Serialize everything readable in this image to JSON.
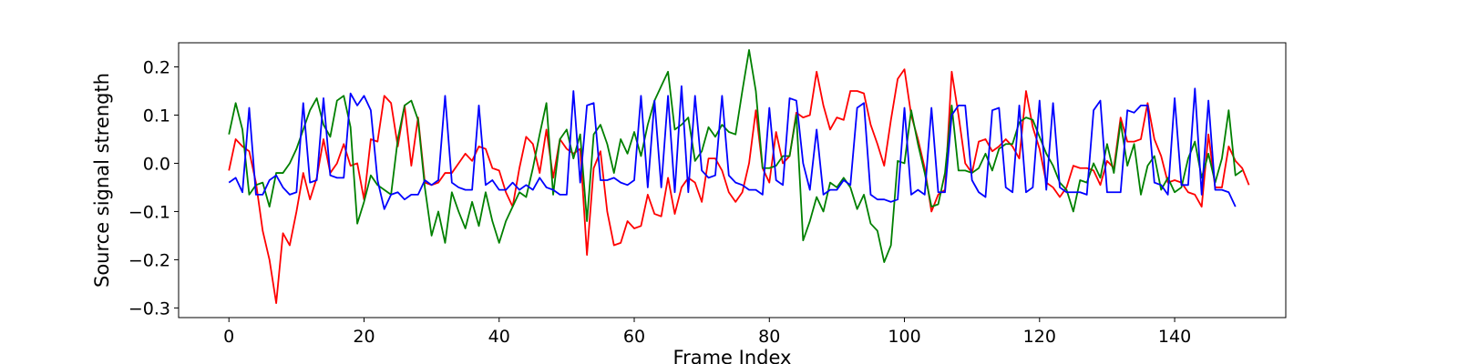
{
  "chart_data": {
    "type": "line",
    "title": "",
    "xlabel": "Frame Index",
    "ylabel": "Source signal strength",
    "xlim": [
      -7.45,
      156.45
    ],
    "ylim": [
      -0.32,
      0.25
    ],
    "x_ticks": [
      0,
      20,
      40,
      60,
      80,
      100,
      120,
      140
    ],
    "y_ticks": [
      -0.3,
      -0.2,
      -0.1,
      0.0,
      0.1,
      0.2
    ],
    "y_tick_labels": [
      "−0.3",
      "−0.2",
      "−0.1",
      "0.0",
      "0.1",
      "0.2"
    ],
    "grid": false,
    "legend": "none",
    "x_start": 0,
    "x_step": 1,
    "series": [
      {
        "color": "#ff0000",
        "values": [
          -0.015,
          0.05,
          0.035,
          0.025,
          -0.04,
          -0.14,
          -0.2,
          -0.29,
          -0.145,
          -0.17,
          -0.1,
          -0.02,
          -0.075,
          -0.03,
          0.05,
          -0.02,
          0.0,
          0.04,
          -0.005,
          0.0,
          -0.075,
          0.05,
          0.045,
          0.14,
          0.125,
          0.035,
          0.12,
          -0.005,
          0.095,
          -0.04,
          -0.045,
          -0.04,
          -0.02,
          -0.02,
          0.0,
          0.02,
          0.005,
          0.035,
          0.03,
          -0.01,
          -0.015,
          -0.06,
          -0.09,
          -0.01,
          0.055,
          0.04,
          -0.02,
          0.07,
          -0.03,
          0.05,
          0.03,
          0.02,
          0.03,
          -0.19,
          -0.01,
          0.025,
          -0.1,
          -0.17,
          -0.165,
          -0.12,
          -0.135,
          -0.13,
          -0.065,
          -0.105,
          -0.11,
          -0.03,
          -0.105,
          -0.05,
          -0.03,
          -0.04,
          -0.08,
          0.01,
          0.01,
          -0.015,
          -0.06,
          -0.08,
          -0.06,
          0.0,
          0.11,
          -0.01,
          -0.04,
          0.065,
          0.0,
          0.015,
          0.105,
          0.095,
          0.1,
          0.19,
          0.12,
          0.07,
          0.095,
          0.09,
          0.15,
          0.15,
          0.145,
          0.08,
          0.04,
          -0.005,
          0.09,
          0.175,
          0.195,
          0.1,
          0.05,
          -0.01,
          -0.1,
          -0.065,
          -0.055,
          0.19,
          0.1,
          0.0,
          -0.02,
          0.045,
          0.05,
          0.025,
          0.035,
          0.05,
          0.035,
          0.01,
          0.15,
          0.075,
          0.03,
          -0.04,
          -0.05,
          -0.07,
          -0.05,
          -0.005,
          -0.01,
          -0.01,
          -0.015,
          -0.045,
          0.005,
          -0.01,
          0.095,
          0.045,
          0.045,
          0.05,
          0.125,
          0.05,
          0.015,
          -0.04,
          -0.035,
          -0.04,
          -0.06,
          -0.065,
          -0.09,
          0.06,
          -0.05,
          -0.05,
          0.035,
          0.005,
          -0.01,
          -0.045
        ]
      },
      {
        "color": "#008000",
        "values": [
          0.06,
          0.125,
          0.07,
          -0.065,
          -0.045,
          -0.04,
          -0.09,
          -0.02,
          -0.02,
          0.0,
          0.03,
          0.07,
          0.11,
          0.135,
          0.08,
          0.055,
          0.13,
          0.14,
          0.075,
          -0.125,
          -0.08,
          -0.025,
          -0.045,
          -0.055,
          -0.065,
          0.05,
          0.12,
          0.13,
          0.09,
          -0.05,
          -0.15,
          -0.1,
          -0.165,
          -0.06,
          -0.1,
          -0.135,
          -0.08,
          -0.13,
          -0.06,
          -0.12,
          -0.165,
          -0.12,
          -0.09,
          -0.06,
          -0.07,
          -0.01,
          0.06,
          0.125,
          -0.065,
          0.05,
          0.07,
          0.01,
          0.06,
          -0.12,
          0.06,
          0.08,
          0.04,
          -0.02,
          0.05,
          0.02,
          0.065,
          0.015,
          0.08,
          0.13,
          0.16,
          0.19,
          0.07,
          0.08,
          0.095,
          0.005,
          0.025,
          0.075,
          0.055,
          0.08,
          0.065,
          0.06,
          0.15,
          0.235,
          0.15,
          -0.01,
          -0.01,
          -0.005,
          0.015,
          0.015,
          0.1,
          -0.16,
          -0.12,
          -0.07,
          -0.1,
          -0.04,
          -0.05,
          -0.03,
          -0.05,
          -0.095,
          -0.065,
          -0.125,
          -0.14,
          -0.205,
          -0.17,
          0.005,
          0.0,
          0.11,
          0.04,
          -0.02,
          -0.09,
          -0.085,
          -0.02,
          0.12,
          -0.015,
          -0.015,
          -0.02,
          -0.01,
          0.02,
          -0.015,
          0.03,
          0.04,
          0.04,
          0.085,
          0.095,
          0.09,
          0.055,
          0.02,
          -0.005,
          -0.04,
          -0.055,
          -0.1,
          -0.035,
          -0.04,
          0.0,
          -0.03,
          0.04,
          -0.02,
          0.085,
          -0.005,
          0.04,
          -0.065,
          -0.005,
          0.015,
          -0.055,
          -0.03,
          -0.06,
          -0.05,
          0.01,
          0.045,
          -0.03,
          0.02,
          -0.04,
          0.01,
          0.11,
          -0.025,
          -0.015
        ]
      },
      {
        "color": "#0000ff",
        "values": [
          -0.04,
          -0.03,
          -0.06,
          0.115,
          -0.065,
          -0.065,
          -0.035,
          -0.025,
          -0.05,
          -0.065,
          -0.06,
          0.125,
          -0.04,
          -0.035,
          0.135,
          -0.025,
          -0.03,
          -0.03,
          0.145,
          0.12,
          0.14,
          0.11,
          -0.035,
          -0.095,
          -0.065,
          -0.06,
          -0.075,
          -0.065,
          -0.065,
          -0.035,
          -0.045,
          -0.035,
          0.14,
          -0.04,
          -0.05,
          -0.055,
          -0.055,
          0.12,
          -0.045,
          -0.035,
          -0.055,
          -0.055,
          -0.04,
          -0.055,
          -0.045,
          -0.055,
          -0.03,
          -0.05,
          -0.055,
          -0.065,
          -0.065,
          0.15,
          -0.04,
          0.12,
          0.125,
          -0.035,
          -0.035,
          -0.03,
          -0.04,
          -0.045,
          -0.035,
          0.14,
          -0.05,
          0.13,
          -0.05,
          0.14,
          -0.06,
          0.16,
          -0.06,
          0.14,
          -0.015,
          -0.03,
          -0.025,
          0.14,
          -0.025,
          -0.04,
          -0.045,
          -0.055,
          -0.055,
          -0.065,
          0.115,
          -0.035,
          -0.045,
          0.135,
          0.13,
          0.0,
          -0.055,
          0.07,
          -0.065,
          -0.055,
          -0.055,
          -0.035,
          -0.045,
          0.115,
          0.125,
          -0.065,
          -0.075,
          -0.075,
          -0.08,
          -0.075,
          0.115,
          -0.065,
          -0.055,
          -0.065,
          0.115,
          -0.06,
          -0.06,
          0.1,
          0.12,
          0.12,
          -0.035,
          -0.06,
          -0.07,
          0.11,
          0.115,
          -0.05,
          -0.06,
          0.12,
          -0.06,
          -0.05,
          0.13,
          -0.055,
          0.125,
          -0.05,
          -0.06,
          -0.06,
          -0.06,
          -0.065,
          0.11,
          0.13,
          -0.06,
          -0.06,
          -0.06,
          0.11,
          0.105,
          0.12,
          0.12,
          -0.04,
          -0.045,
          -0.065,
          0.135,
          -0.045,
          -0.045,
          0.155,
          -0.065,
          0.13,
          -0.055,
          -0.055,
          -0.06,
          -0.09
        ]
      }
    ]
  }
}
